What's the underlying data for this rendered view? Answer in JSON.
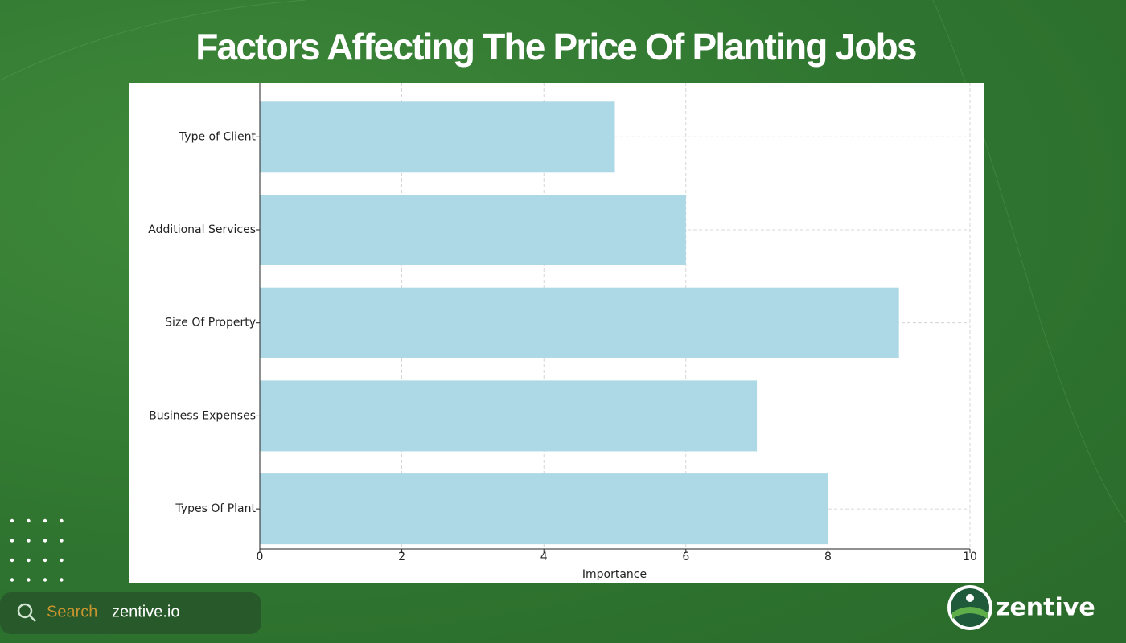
{
  "chart_data": {
    "type": "barh",
    "title": "Factors Affecting The Price Of Planting Jobs",
    "categories": [
      "Type of Client",
      "Additional Services",
      "Size Of Property",
      "Business Expenses",
      "Types Of Plant"
    ],
    "values": [
      5,
      6,
      9,
      7,
      8
    ],
    "color": "#add8e6",
    "xlabel": "Importance",
    "xlim": [
      0,
      10
    ],
    "xticks": [
      0,
      2,
      4,
      6,
      8,
      10
    ],
    "grid": true
  },
  "search": {
    "label": "Search",
    "text": "zentive.io"
  },
  "brand": "zentive"
}
